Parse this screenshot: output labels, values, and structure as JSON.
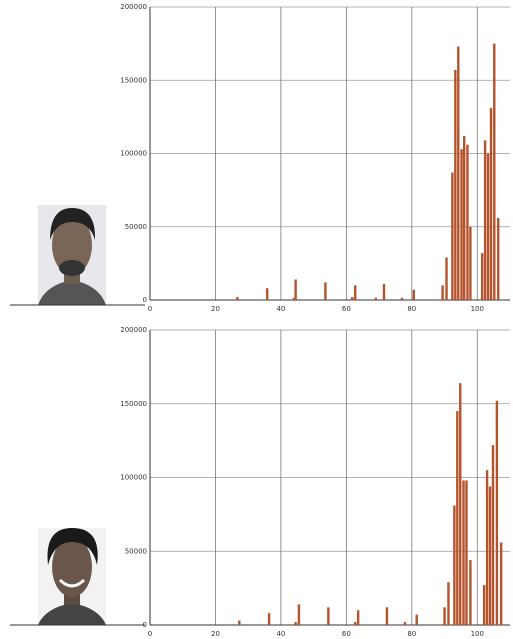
{
  "chart_data": [
    {
      "type": "bar",
      "color": "#b4532c",
      "grid": true,
      "x": [
        26.7,
        35.8,
        44,
        44.5,
        53.6,
        61.8,
        62.7,
        69,
        71.5,
        77,
        80.6,
        89.4,
        90.6,
        92.4,
        93.3,
        94.2,
        95.2,
        96,
        97,
        97.9,
        101.5,
        102.4,
        103.3,
        104.2,
        105.2,
        106.4
      ],
      "values": [
        2000,
        8000,
        1500,
        14000,
        12000,
        2000,
        10000,
        1500,
        11000,
        1500,
        7000,
        10000,
        29000,
        87000,
        157000,
        173000,
        103000,
        112000,
        106000,
        50000,
        32000,
        109000,
        100000,
        131000,
        175000,
        56000
      ],
      "xlim": [
        0,
        110
      ],
      "xticks": [
        0,
        20,
        40,
        60,
        80,
        100
      ],
      "ylim": [
        0,
        200000
      ],
      "yticks": [
        0,
        50000,
        100000,
        150000,
        200000
      ]
    },
    {
      "type": "bar",
      "color": "#b4532c",
      "grid": true,
      "x": [
        27.3,
        36.4,
        44.5,
        45.5,
        54.5,
        62.7,
        63.6,
        72.4,
        77.9,
        81.5,
        90,
        91.2,
        93,
        93.9,
        94.8,
        95.8,
        96.7,
        97.9,
        102.1,
        103,
        103.9,
        104.8,
        106,
        107.3
      ],
      "values": [
        3000,
        8000,
        2000,
        14000,
        12000,
        2000,
        10000,
        12000,
        2000,
        7000,
        12000,
        29000,
        81000,
        145000,
        164000,
        98000,
        98000,
        44000,
        27000,
        105000,
        94000,
        122000,
        152000,
        56000
      ],
      "xlim": [
        0,
        110
      ],
      "xticks": [
        0,
        20,
        40,
        60,
        80,
        100
      ],
      "ylim": [
        0,
        200000
      ],
      "yticks": [
        0,
        50000,
        100000,
        150000,
        200000
      ]
    }
  ]
}
